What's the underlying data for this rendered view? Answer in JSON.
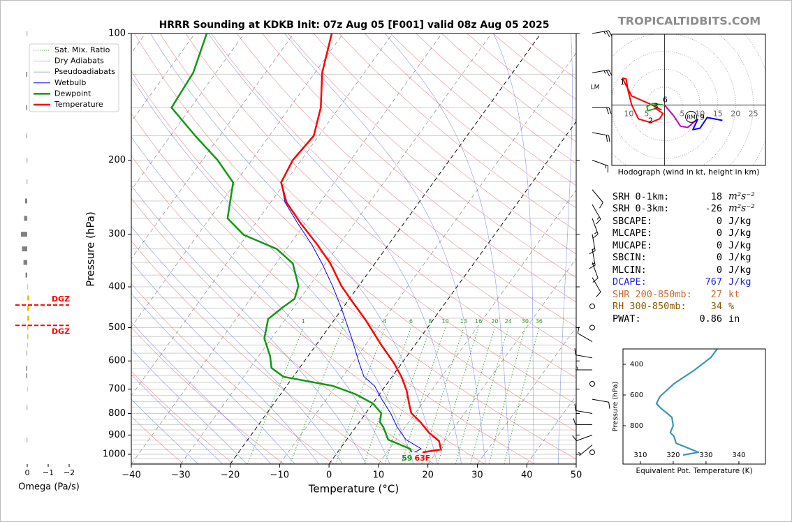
{
  "site": "TROPICALTIDBITS.COM",
  "chart_data": [
    {
      "type": "skewt",
      "title": "HRRR Sounding at KDKB Init: 07z Aug 05 [F001] valid 08z Aug 05 2025",
      "xlabel": "Temperature (°C)",
      "ylabel": "Pressure (hPa)",
      "xlim": [
        -40,
        50
      ],
      "ylim": [
        1055,
        100
      ],
      "log_y": true,
      "xticks": [
        {
          "value": -40,
          "label": "−40"
        },
        {
          "value": -30,
          "label": "−30"
        },
        {
          "value": -20,
          "label": "−20"
        },
        {
          "value": -10,
          "label": "−10"
        },
        0,
        10,
        20,
        30,
        40,
        50
      ],
      "yticks": [
        100,
        200,
        300,
        400,
        500,
        600,
        700,
        800,
        900,
        1000
      ],
      "grid_pressures": [
        100,
        125,
        150,
        175,
        200,
        225,
        250,
        275,
        300,
        325,
        350,
        375,
        400,
        425,
        450,
        475,
        500,
        525,
        550,
        575,
        600,
        625,
        650,
        675,
        700,
        725,
        750,
        775,
        800,
        825,
        850,
        875,
        900,
        925,
        950,
        975,
        1000,
        1025,
        1050
      ],
      "isotherms": [
        -100,
        -90,
        -80,
        -70,
        -60,
        -50,
        -40,
        -30,
        -20,
        -10,
        0,
        10,
        20,
        30,
        40,
        50
      ],
      "highlight_isotherms": [
        -20,
        0
      ],
      "dry_adiabats": [
        240,
        250,
        260,
        270,
        280,
        290,
        300,
        310,
        320,
        330,
        340,
        350,
        360,
        370,
        380,
        390,
        400,
        410,
        420,
        430,
        440,
        450,
        460,
        470,
        480
      ],
      "pseudoadiabats": [
        -30,
        -25,
        -20,
        -15,
        -10,
        -5,
        0,
        5,
        10,
        15,
        20,
        25,
        30,
        35,
        40,
        45
      ],
      "mixing_ratios": [
        1,
        2,
        4,
        6,
        8,
        10,
        13,
        16,
        20,
        24,
        30,
        36
      ],
      "reference_lines": [
        {
          "name": "Sat. Mix. Ratio",
          "color": "#2ca02c"
        },
        {
          "name": "Dry Adiabats",
          "color": "#d62728"
        },
        {
          "name": "Pseudoadiabats",
          "color": "#1f3fd0"
        }
      ],
      "series": [
        {
          "name": "Wetbulb",
          "color": "#0000ff",
          "pressure": [
            989,
            970,
            923,
            862,
            798,
            740,
            688,
            654,
            606,
            531,
            447,
            398,
            352,
            317,
            283,
            252,
            226,
            200,
            175,
            150,
            124,
            100
          ],
          "values": [
            15.6,
            16.4,
            12.0,
            8.4,
            5.0,
            1.2,
            -2.2,
            -5.7,
            -8.7,
            -13.7,
            -20.5,
            -25.3,
            -30.7,
            -35.6,
            -41.4,
            -47.1,
            -50.8,
            -51.7,
            -51.0,
            -53.7,
            -58.5,
            -62.3
          ]
        },
        {
          "name": "Dewpoint",
          "color": "#109a10",
          "pressure": [
            989,
            970,
            923,
            862,
            839,
            798,
            757,
            720,
            688,
            654,
            623,
            584,
            531,
            477,
            447,
            427,
            398,
            352,
            325,
            301,
            275,
            226,
            200,
            175,
            150,
            124,
            100
          ],
          "values": [
            15.0,
            14.1,
            8.4,
            5.6,
            4.2,
            3.1,
            0.0,
            -4.8,
            -10.6,
            -22.0,
            -25.7,
            -27.7,
            -31.4,
            -33.5,
            -32.2,
            -31.1,
            -32.2,
            -36.6,
            -42.0,
            -50.7,
            -56.4,
            -60.5,
            -66.9,
            -75.0,
            -83.9,
            -84.6,
            -87.6
          ]
        },
        {
          "name": "Temperature",
          "color": "#ff0000",
          "pressure": [
            989,
            974,
            930,
            888,
            839,
            798,
            763,
            706,
            654,
            606,
            551,
            477,
            433,
            398,
            352,
            317,
            283,
            252,
            226,
            200,
            175,
            150,
            124,
            100
          ],
          "values": [
            17.2,
            20.5,
            18.9,
            15.6,
            12.4,
            9.2,
            7.6,
            5.0,
            1.9,
            -1.7,
            -6.7,
            -13.9,
            -19.1,
            -23.5,
            -29.0,
            -34.5,
            -40.8,
            -46.8,
            -50.8,
            -51.7,
            -51.0,
            -53.7,
            -58.5,
            -62.3
          ]
        }
      ],
      "surface": {
        "dewpoint": 59,
        "temperature": {
          "value": 63,
          "label": "63F"
        }
      },
      "annotation": "LM",
      "wind": {
        "pressure": [
          100,
          124,
          150,
          172,
          200,
          235,
          255,
          275,
          300,
          325,
          350,
          380,
          445,
          500,
          540,
          590,
          630,
          680,
          740,
          800,
          850,
          900,
          950,
          989
        ],
        "direction": [
          80,
          80,
          90,
          100,
          110,
          140,
          150,
          160,
          170,
          170,
          160,
          150,
          0,
          0,
          300,
          280,
          270,
          0,
          100,
          280,
          270,
          250,
          230,
          0
        ],
        "speed": [
          25,
          25,
          20,
          20,
          15,
          10,
          15,
          15,
          15,
          15,
          10,
          10,
          0,
          0,
          10,
          10,
          5,
          0,
          10,
          10,
          10,
          10,
          5,
          0
        ]
      }
    },
    {
      "type": "hodograph",
      "xlabel": "Hodograph (wind in kt, height in km)",
      "xlim": [
        -14.8,
        28.4
      ],
      "ylim": [
        -16.9,
        19.8
      ],
      "rings": [
        5,
        10,
        15,
        20,
        25,
        30,
        35,
        40
      ],
      "xticks": [
        {
          "value": -10,
          "label": "10"
        },
        {
          "value": -5,
          "label": "5"
        },
        5,
        10,
        15,
        20,
        25
      ],
      "segments": [
        {
          "color": "#ff0000",
          "u": [
            -0.8,
            -4.3,
            -9.2,
            -11.2,
            -11.8,
            -10.8,
            -10.2,
            -9.2,
            -7.3,
            -3.9,
            -1.4,
            -0.4,
            -2.4
          ],
          "v": [
            -1.4,
            0.4,
            2.5,
            6.3,
            7.5,
            7.3,
            3.9,
            0,
            -3.9,
            -4.9,
            -3.9,
            -2.4,
            -1.0
          ]
        },
        {
          "color": "#22aa22",
          "u": [
            -2.4,
            -4.7,
            -4.9,
            -3.3,
            -0.4
          ],
          "v": [
            -1.0,
            -1.6,
            -0.4,
            0.4,
            0
          ]
        },
        {
          "color": "#bf00bf",
          "u": [
            0,
            2.5,
            4.5,
            6.5,
            9.4
          ],
          "v": [
            0,
            -2.9,
            -5.9,
            -6.3,
            -3.9
          ]
        },
        {
          "color": "#0000ff",
          "u": [
            9.4,
            8.0,
            10.0,
            12.0,
            16.3
          ],
          "v": [
            -3.9,
            -6.9,
            -6.5,
            -3.5,
            -4.3
          ]
        }
      ],
      "height_labels": [
        {
          "height": 1,
          "u": -11.8,
          "v": 6.3
        },
        {
          "height": 2,
          "u": -3.9,
          "v": -4.5
        },
        {
          "height": 3,
          "u": -2.4,
          "v": -0.4
        },
        {
          "height": 6,
          "u": 0.2,
          "v": 1.4
        },
        {
          "height": 9,
          "u": 10.6,
          "v": -3.5
        }
      ],
      "storm_motion": {
        "label": "RM",
        "u": 7.5,
        "v": -3.3
      }
    },
    {
      "type": "line",
      "xlabel": "Equivalent Pot. Temperature (K)",
      "ylabel": "Pressure (hPa)",
      "xlim": [
        304.7,
        348.1
      ],
      "ylim": [
        1050,
        300
      ],
      "xticks": [
        310,
        320,
        330,
        340
      ],
      "yticks": [
        400,
        600,
        800
      ],
      "color": "#3a96b8",
      "pressure": [
        300,
        355,
        436,
        527,
        609,
        655,
        686,
        745,
        800,
        845,
        868,
        914,
        973,
        991
      ],
      "values": [
        333.4,
        331.5,
        326.6,
        320.2,
        316.0,
        314.9,
        316.2,
        319.6,
        320.0,
        319.1,
        320.2,
        320.9,
        327.7,
        323.0
      ]
    },
    {
      "type": "bar",
      "xlabel": "Omega (Pa/s)",
      "xlim": [
        0.6,
        -2.2
      ],
      "ylim": [
        1055,
        100
      ],
      "log_y": true,
      "xticks": [
        0,
        {
          "value": -1,
          "label": "−1"
        },
        {
          "value": -2,
          "label": "−2"
        }
      ],
      "color": "#808080",
      "negative_color": "#f5c400",
      "pressure": [
        100,
        125,
        150,
        175,
        200,
        225,
        250,
        275,
        300,
        325,
        350,
        375,
        400,
        425,
        450,
        475,
        500,
        525,
        550,
        575,
        625,
        650,
        700,
        775,
        925
      ],
      "values": [
        0.02,
        0.05,
        0.05,
        0.03,
        0.02,
        0.02,
        0.1,
        0.15,
        0.3,
        0.25,
        0.18,
        0.08,
        -0.03,
        -0.1,
        -0.1,
        -0.1,
        -0.05,
        -0.05,
        -0.02,
        0.03,
        0.05,
        0.05,
        -0.02,
        0.02,
        0.02
      ],
      "dgz_color": "#ff0000",
      "dgz": [
        {
          "label": "DGZ",
          "pressure": 442
        },
        {
          "label": "DGZ",
          "pressure": 494
        }
      ]
    }
  ],
  "indices": [
    {
      "label": "SRH 0-1km:",
      "value": 18,
      "unit": "m²s⁻²",
      "color": "#000000"
    },
    {
      "label": "SRH 0-3km:",
      "value": -26,
      "unit": "m²s⁻²",
      "color": "#000000"
    },
    {
      "label": "SBCAPE:",
      "value": 0,
      "unit": "J/kg",
      "color": "#000000"
    },
    {
      "label": "MLCAPE:",
      "value": 0,
      "unit": "J/kg",
      "color": "#000000"
    },
    {
      "label": "MUCAPE:",
      "value": 0,
      "unit": "J/kg",
      "color": "#000000"
    },
    {
      "label": "SBCIN:",
      "value": 0,
      "unit": "J/kg",
      "color": "#000000"
    },
    {
      "label": "MLCIN:",
      "value": 0,
      "unit": "J/kg",
      "color": "#000000"
    },
    {
      "label": "DCAPE:",
      "value": 767,
      "unit": "J/kg",
      "color": "#2424d8"
    },
    {
      "label": "SHR 200-850mb:",
      "value": 27,
      "unit": "kt",
      "color": "#cc6a2a"
    },
    {
      "label": "RH 300-850mb:",
      "value": 34,
      "unit": "%",
      "color": "#8b5a00"
    },
    {
      "label": "PWAT:",
      "value": 0.86,
      "unit": "in",
      "color": "#000000"
    }
  ]
}
